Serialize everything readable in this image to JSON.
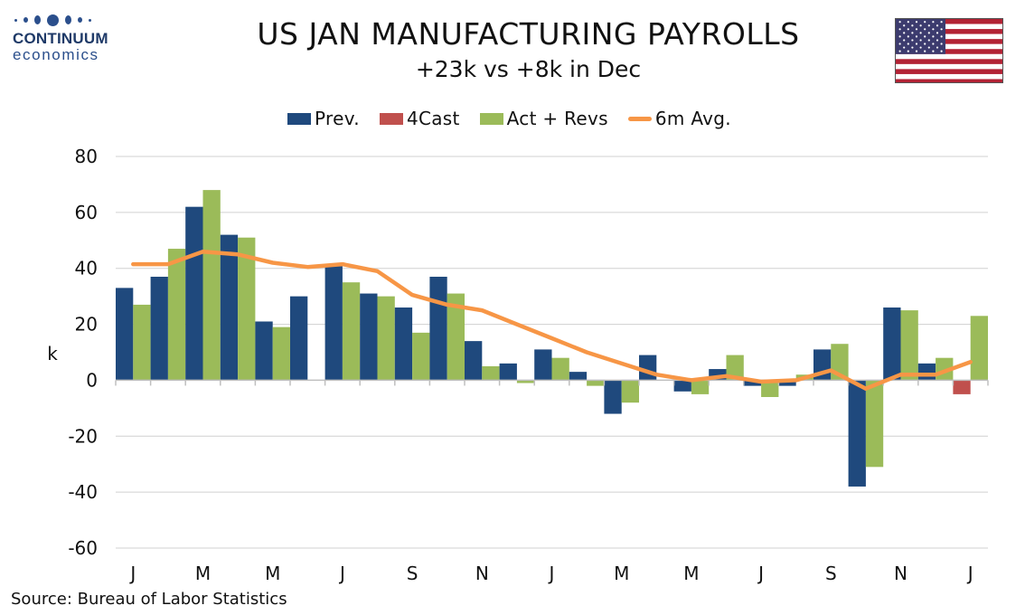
{
  "logo": {
    "name": "CONTINUUM",
    "sub": "economics"
  },
  "header": {
    "title": "US JAN MANUFACTURING PAYROLLS",
    "subtitle": "+23k vs +8k in Dec"
  },
  "source": "Source: Bureau of Labor Statistics",
  "colors": {
    "prev": "#1f497d",
    "forecast": "#c0504d",
    "actual": "#9bbb59",
    "avg": "#f79646",
    "grid": "#d0d0d0"
  },
  "chart_data": {
    "type": "bar",
    "title": "US JAN MANUFACTURING PAYROLLS",
    "subtitle": "+23k vs +8k in Dec",
    "ylabel": "k",
    "ylim": [
      -60,
      80
    ],
    "yticks": [
      80,
      60,
      40,
      20,
      0,
      -20,
      -40,
      -60
    ],
    "grid": true,
    "legend_position": "top",
    "tick_labels": [
      "J",
      "M",
      "M",
      "J",
      "S",
      "N",
      "J",
      "M",
      "M",
      "J",
      "S",
      "N",
      "J"
    ],
    "series": [
      {
        "name": "Prev.",
        "kind": "bar",
        "values": [
          33,
          37,
          62,
          52,
          21,
          30,
          41,
          31,
          26,
          37,
          14,
          6,
          11,
          3,
          -12,
          9,
          -4,
          4,
          -2,
          -2,
          11,
          -38,
          26,
          6,
          null
        ]
      },
      {
        "name": "4Cast",
        "kind": "bar",
        "values": [
          null,
          null,
          null,
          null,
          null,
          null,
          null,
          null,
          null,
          null,
          null,
          null,
          null,
          null,
          null,
          null,
          null,
          null,
          null,
          null,
          null,
          null,
          null,
          null,
          -5
        ]
      },
      {
        "name": "Act + Revs",
        "kind": "bar",
        "values": [
          27,
          47,
          68,
          51,
          19,
          null,
          35,
          30,
          17,
          31,
          5,
          -1,
          8,
          -2,
          -8,
          null,
          -5,
          9,
          -6,
          2,
          13,
          -31,
          25,
          8,
          23
        ]
      },
      {
        "name": "6m Avg.",
        "kind": "line",
        "values": [
          41.5,
          41.5,
          46,
          45,
          42,
          40.5,
          41.5,
          39,
          30.5,
          27,
          25,
          20,
          15,
          10,
          6,
          2,
          0,
          1.5,
          -0.5,
          0,
          3.5,
          -3,
          2,
          2,
          6.5
        ]
      }
    ]
  }
}
